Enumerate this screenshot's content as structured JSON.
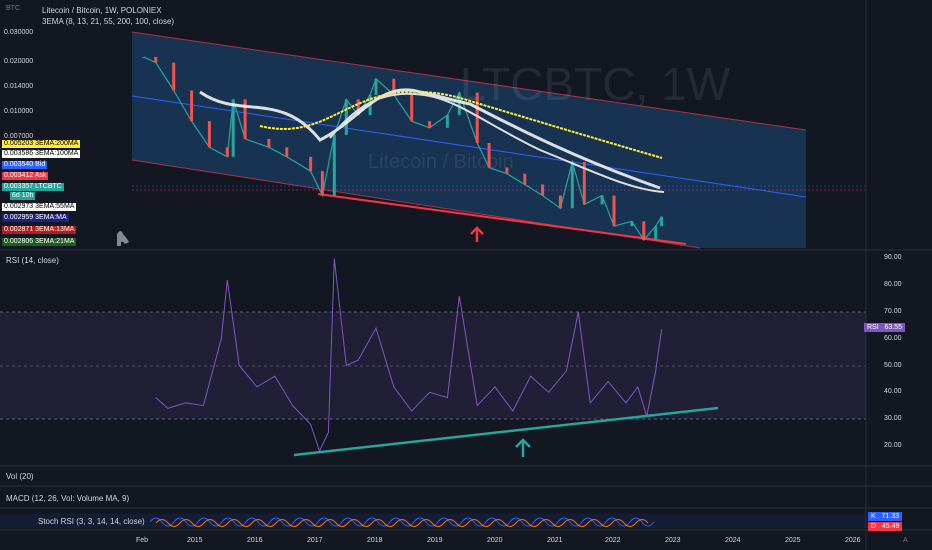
{
  "header": {
    "currency": "BTC",
    "title": "Litecoin / Bitcoin, 1W, POLONIEX",
    "indicator": "3EMA (8, 13, 21, 55, 200, 100, close)",
    "watermark_big": "LTCBTC, 1W",
    "watermark_small": "Litecoin / Bitcoin"
  },
  "price_axis": {
    "ticks": [
      "0.030000",
      "0.020000",
      "0.014000",
      "0.010000",
      "0.007000"
    ]
  },
  "price_tags": [
    {
      "value": "0.005203",
      "label": "3EMA:200MA",
      "color": "#ffeb3b",
      "text_color": "#000000"
    },
    {
      "value": "0.003586",
      "label": "3EMA:100MA",
      "color": "#ffffff",
      "text_color": "#000000"
    },
    {
      "value": "0.003540",
      "label": "Bid",
      "color": "#2962ff",
      "text_color": "#ffffff"
    },
    {
      "value": "0.003412",
      "label": "Ask",
      "color": "#f23645",
      "text_color": "#ffffff"
    },
    {
      "value": "0.003357",
      "label": "LTCBTC",
      "color": "#26a69a",
      "text_color": "#ffffff"
    },
    {
      "value": "6d 10h",
      "label": "",
      "color": "#26a69a",
      "text_color": "#ffffff"
    },
    {
      "value": "0.002973",
      "label": "3EMA:55MA",
      "color": "#ffffff",
      "text_color": "#000000"
    },
    {
      "value": "0.002959",
      "label": "3EMA:MA",
      "color": "#1a237e",
      "text_color": "#ffffff"
    },
    {
      "value": "0.002871",
      "label": "3EMA:13MA",
      "color": "#b71c1c",
      "text_color": "#ffffff"
    },
    {
      "value": "0.002806",
      "label": "3EMA:21MA",
      "color": "#1b5e20",
      "text_color": "#ffffff"
    }
  ],
  "rsi": {
    "label": "RSI (14, close)",
    "ticks": [
      "90.00",
      "80.00",
      "70.00",
      "60.00",
      "50.00",
      "40.00",
      "30.00",
      "20.00"
    ],
    "tag_label": "RSI",
    "tag_value": "63.55"
  },
  "vol_label": "Vol (20)",
  "macd_label": "MACD (12, 26, Vol: Volume MA, 9)",
  "stoch": {
    "label": "Stoch RSI (3, 3, 14, 14, close)",
    "k_label": "K",
    "k_value": "71.33",
    "d_label": "D",
    "d_value": "45.49"
  },
  "time_axis": [
    "Feb",
    "2015",
    "2016",
    "2017",
    "2018",
    "2019",
    "2020",
    "2021",
    "2022",
    "2023",
    "2024",
    "2025",
    "2026"
  ],
  "scale_mode": "A",
  "chart_data": [
    {
      "type": "line",
      "title": "Litecoin / Bitcoin, 1W, POLONIEX",
      "scale": "log",
      "ylim": [
        0.0025,
        0.04
      ],
      "x": [
        2014.1,
        2014.3,
        2014.6,
        2014.9,
        2015.2,
        2015.5,
        2015.6,
        2015.8,
        2016.2,
        2016.5,
        2016.9,
        2017.1,
        2017.3,
        2017.5,
        2017.7,
        2017.9,
        2018.0,
        2018.3,
        2018.6,
        2018.9,
        2019.2,
        2019.4,
        2019.7,
        2019.9,
        2020.2,
        2020.5,
        2020.8,
        2021.1,
        2021.3,
        2021.5,
        2021.8,
        2022.0,
        2022.3,
        2022.5,
        2022.7,
        2022.8
      ],
      "series": [
        {
          "values": [
            0.028,
            0.026,
            0.018,
            0.012,
            0.0085,
            0.0075,
            0.016,
            0.0095,
            0.0085,
            0.0075,
            0.0062,
            0.0045,
            0.01,
            0.016,
            0.013,
            0.017,
            0.021,
            0.017,
            0.012,
            0.011,
            0.013,
            0.0175,
            0.009,
            0.0065,
            0.006,
            0.0052,
            0.0045,
            0.0038,
            0.007,
            0.004,
            0.0045,
            0.003,
            0.0032,
            0.0025,
            0.003,
            0.0034
          ]
        }
      ],
      "channel": {
        "upper_start": 0.034,
        "upper_end": 0.0085,
        "lower_start": 0.0055,
        "lower_end": 0.0025
      }
    },
    {
      "type": "line",
      "title": "RSI (14, close)",
      "ylim": [
        15,
        92
      ],
      "x": [
        2014.3,
        2014.5,
        2014.8,
        2015.1,
        2015.4,
        2015.5,
        2015.7,
        2016.0,
        2016.3,
        2016.6,
        2016.9,
        2017.05,
        2017.2,
        2017.3,
        2017.5,
        2017.7,
        2018.0,
        2018.3,
        2018.6,
        2018.9,
        2019.2,
        2019.4,
        2019.7,
        2020.0,
        2020.3,
        2020.6,
        2020.9,
        2021.2,
        2021.4,
        2021.6,
        2021.9,
        2022.2,
        2022.4,
        2022.55,
        2022.7,
        2022.8
      ],
      "series": [
        {
          "values": [
            38,
            34,
            36,
            35,
            60,
            82,
            50,
            42,
            46,
            35,
            28,
            18,
            25,
            90,
            50,
            52,
            64,
            42,
            33,
            40,
            38,
            76,
            35,
            42,
            33,
            46,
            40,
            48,
            70,
            36,
            44,
            36,
            42,
            31,
            48,
            63.55
          ]
        }
      ],
      "bands": [
        30,
        50,
        70
      ],
      "trendline": {
        "x": [
          2016.8,
          2023.8
        ],
        "y": [
          17.5,
          33.5
        ]
      }
    }
  ]
}
